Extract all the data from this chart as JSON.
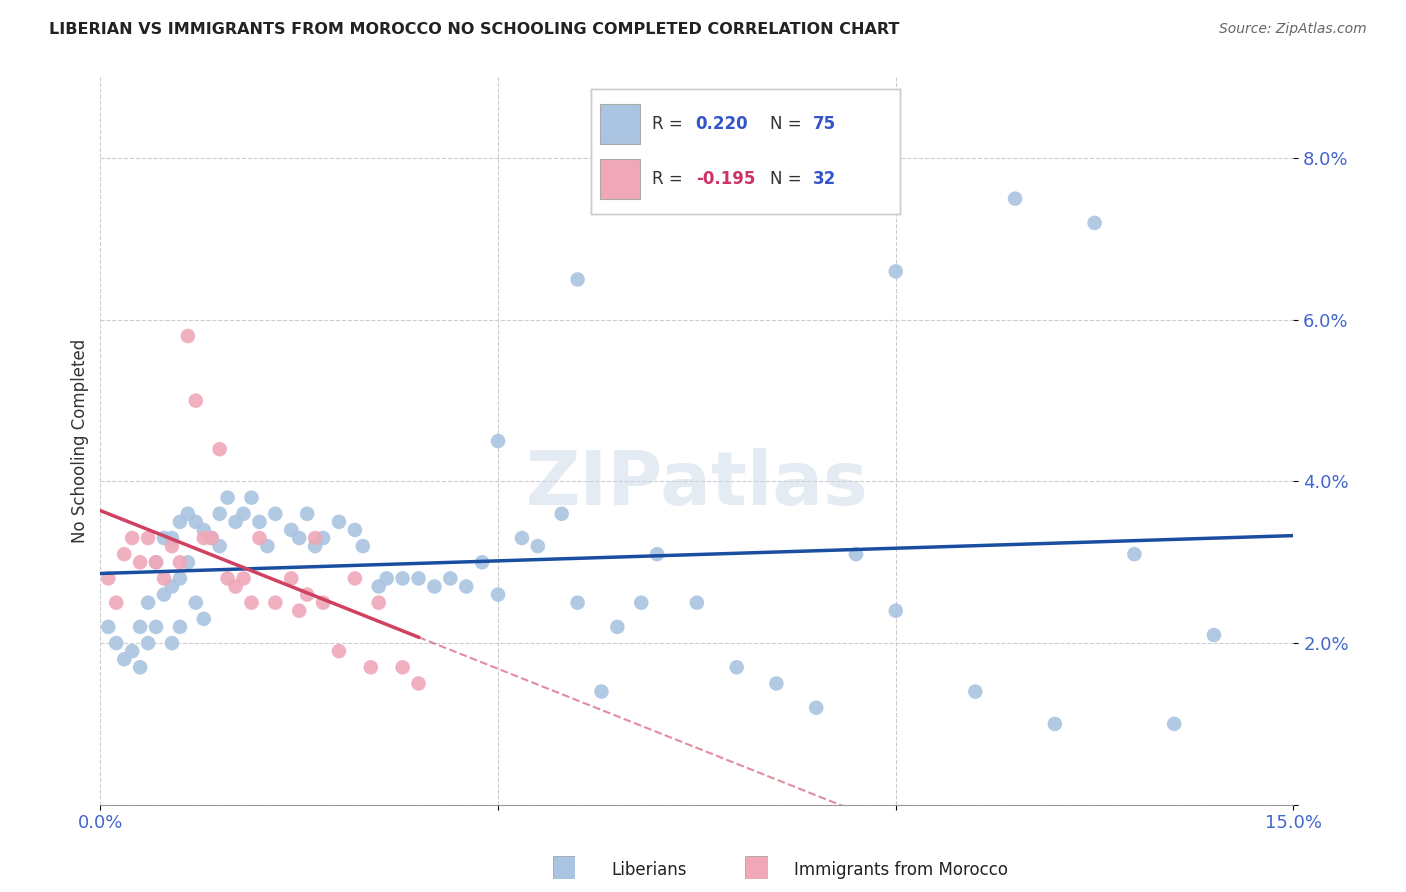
{
  "title": "LIBERIAN VS IMMIGRANTS FROM MOROCCO NO SCHOOLING COMPLETED CORRELATION CHART",
  "source": "Source: ZipAtlas.com",
  "ylabel": "No Schooling Completed",
  "xlim": [
    0.0,
    0.15
  ],
  "ylim": [
    0.0,
    0.09
  ],
  "liberian_color": "#aac4e2",
  "liberian_line_color": "#1a4ea0",
  "morocco_color": "#f0a8b8",
  "morocco_line_color": "#d04060",
  "background_color": "#ffffff",
  "grid_color": "#cccccc",
  "liberian_x": [
    0.001,
    0.002,
    0.003,
    0.004,
    0.005,
    0.005,
    0.006,
    0.006,
    0.007,
    0.007,
    0.008,
    0.008,
    0.009,
    0.009,
    0.009,
    0.01,
    0.01,
    0.01,
    0.011,
    0.011,
    0.012,
    0.012,
    0.013,
    0.013,
    0.014,
    0.015,
    0.015,
    0.016,
    0.017,
    0.018,
    0.019,
    0.02,
    0.021,
    0.022,
    0.024,
    0.025,
    0.026,
    0.027,
    0.028,
    0.03,
    0.032,
    0.033,
    0.035,
    0.036,
    0.038,
    0.04,
    0.042,
    0.044,
    0.046,
    0.048,
    0.05,
    0.053,
    0.055,
    0.058,
    0.06,
    0.063,
    0.065,
    0.068,
    0.07,
    0.075,
    0.08,
    0.085,
    0.09,
    0.095,
    0.1,
    0.11,
    0.115,
    0.12,
    0.125,
    0.13,
    0.135,
    0.14,
    0.1,
    0.05,
    0.06
  ],
  "liberian_y": [
    0.022,
    0.02,
    0.018,
    0.019,
    0.017,
    0.022,
    0.025,
    0.02,
    0.03,
    0.022,
    0.033,
    0.026,
    0.033,
    0.027,
    0.02,
    0.035,
    0.028,
    0.022,
    0.036,
    0.03,
    0.035,
    0.025,
    0.034,
    0.023,
    0.033,
    0.036,
    0.032,
    0.038,
    0.035,
    0.036,
    0.038,
    0.035,
    0.032,
    0.036,
    0.034,
    0.033,
    0.036,
    0.032,
    0.033,
    0.035,
    0.034,
    0.032,
    0.027,
    0.028,
    0.028,
    0.028,
    0.027,
    0.028,
    0.027,
    0.03,
    0.026,
    0.033,
    0.032,
    0.036,
    0.025,
    0.014,
    0.022,
    0.025,
    0.031,
    0.025,
    0.017,
    0.015,
    0.012,
    0.031,
    0.024,
    0.014,
    0.075,
    0.01,
    0.072,
    0.031,
    0.01,
    0.021,
    0.066,
    0.045,
    0.065
  ],
  "morocco_x": [
    0.001,
    0.002,
    0.003,
    0.004,
    0.005,
    0.006,
    0.007,
    0.008,
    0.009,
    0.01,
    0.011,
    0.012,
    0.013,
    0.014,
    0.015,
    0.016,
    0.017,
    0.018,
    0.019,
    0.02,
    0.022,
    0.024,
    0.025,
    0.026,
    0.027,
    0.028,
    0.03,
    0.032,
    0.034,
    0.035,
    0.038,
    0.04
  ],
  "morocco_y": [
    0.028,
    0.025,
    0.031,
    0.033,
    0.03,
    0.033,
    0.03,
    0.028,
    0.032,
    0.03,
    0.058,
    0.05,
    0.033,
    0.033,
    0.044,
    0.028,
    0.027,
    0.028,
    0.025,
    0.033,
    0.025,
    0.028,
    0.024,
    0.026,
    0.033,
    0.025,
    0.019,
    0.028,
    0.017,
    0.025,
    0.017,
    0.015
  ]
}
